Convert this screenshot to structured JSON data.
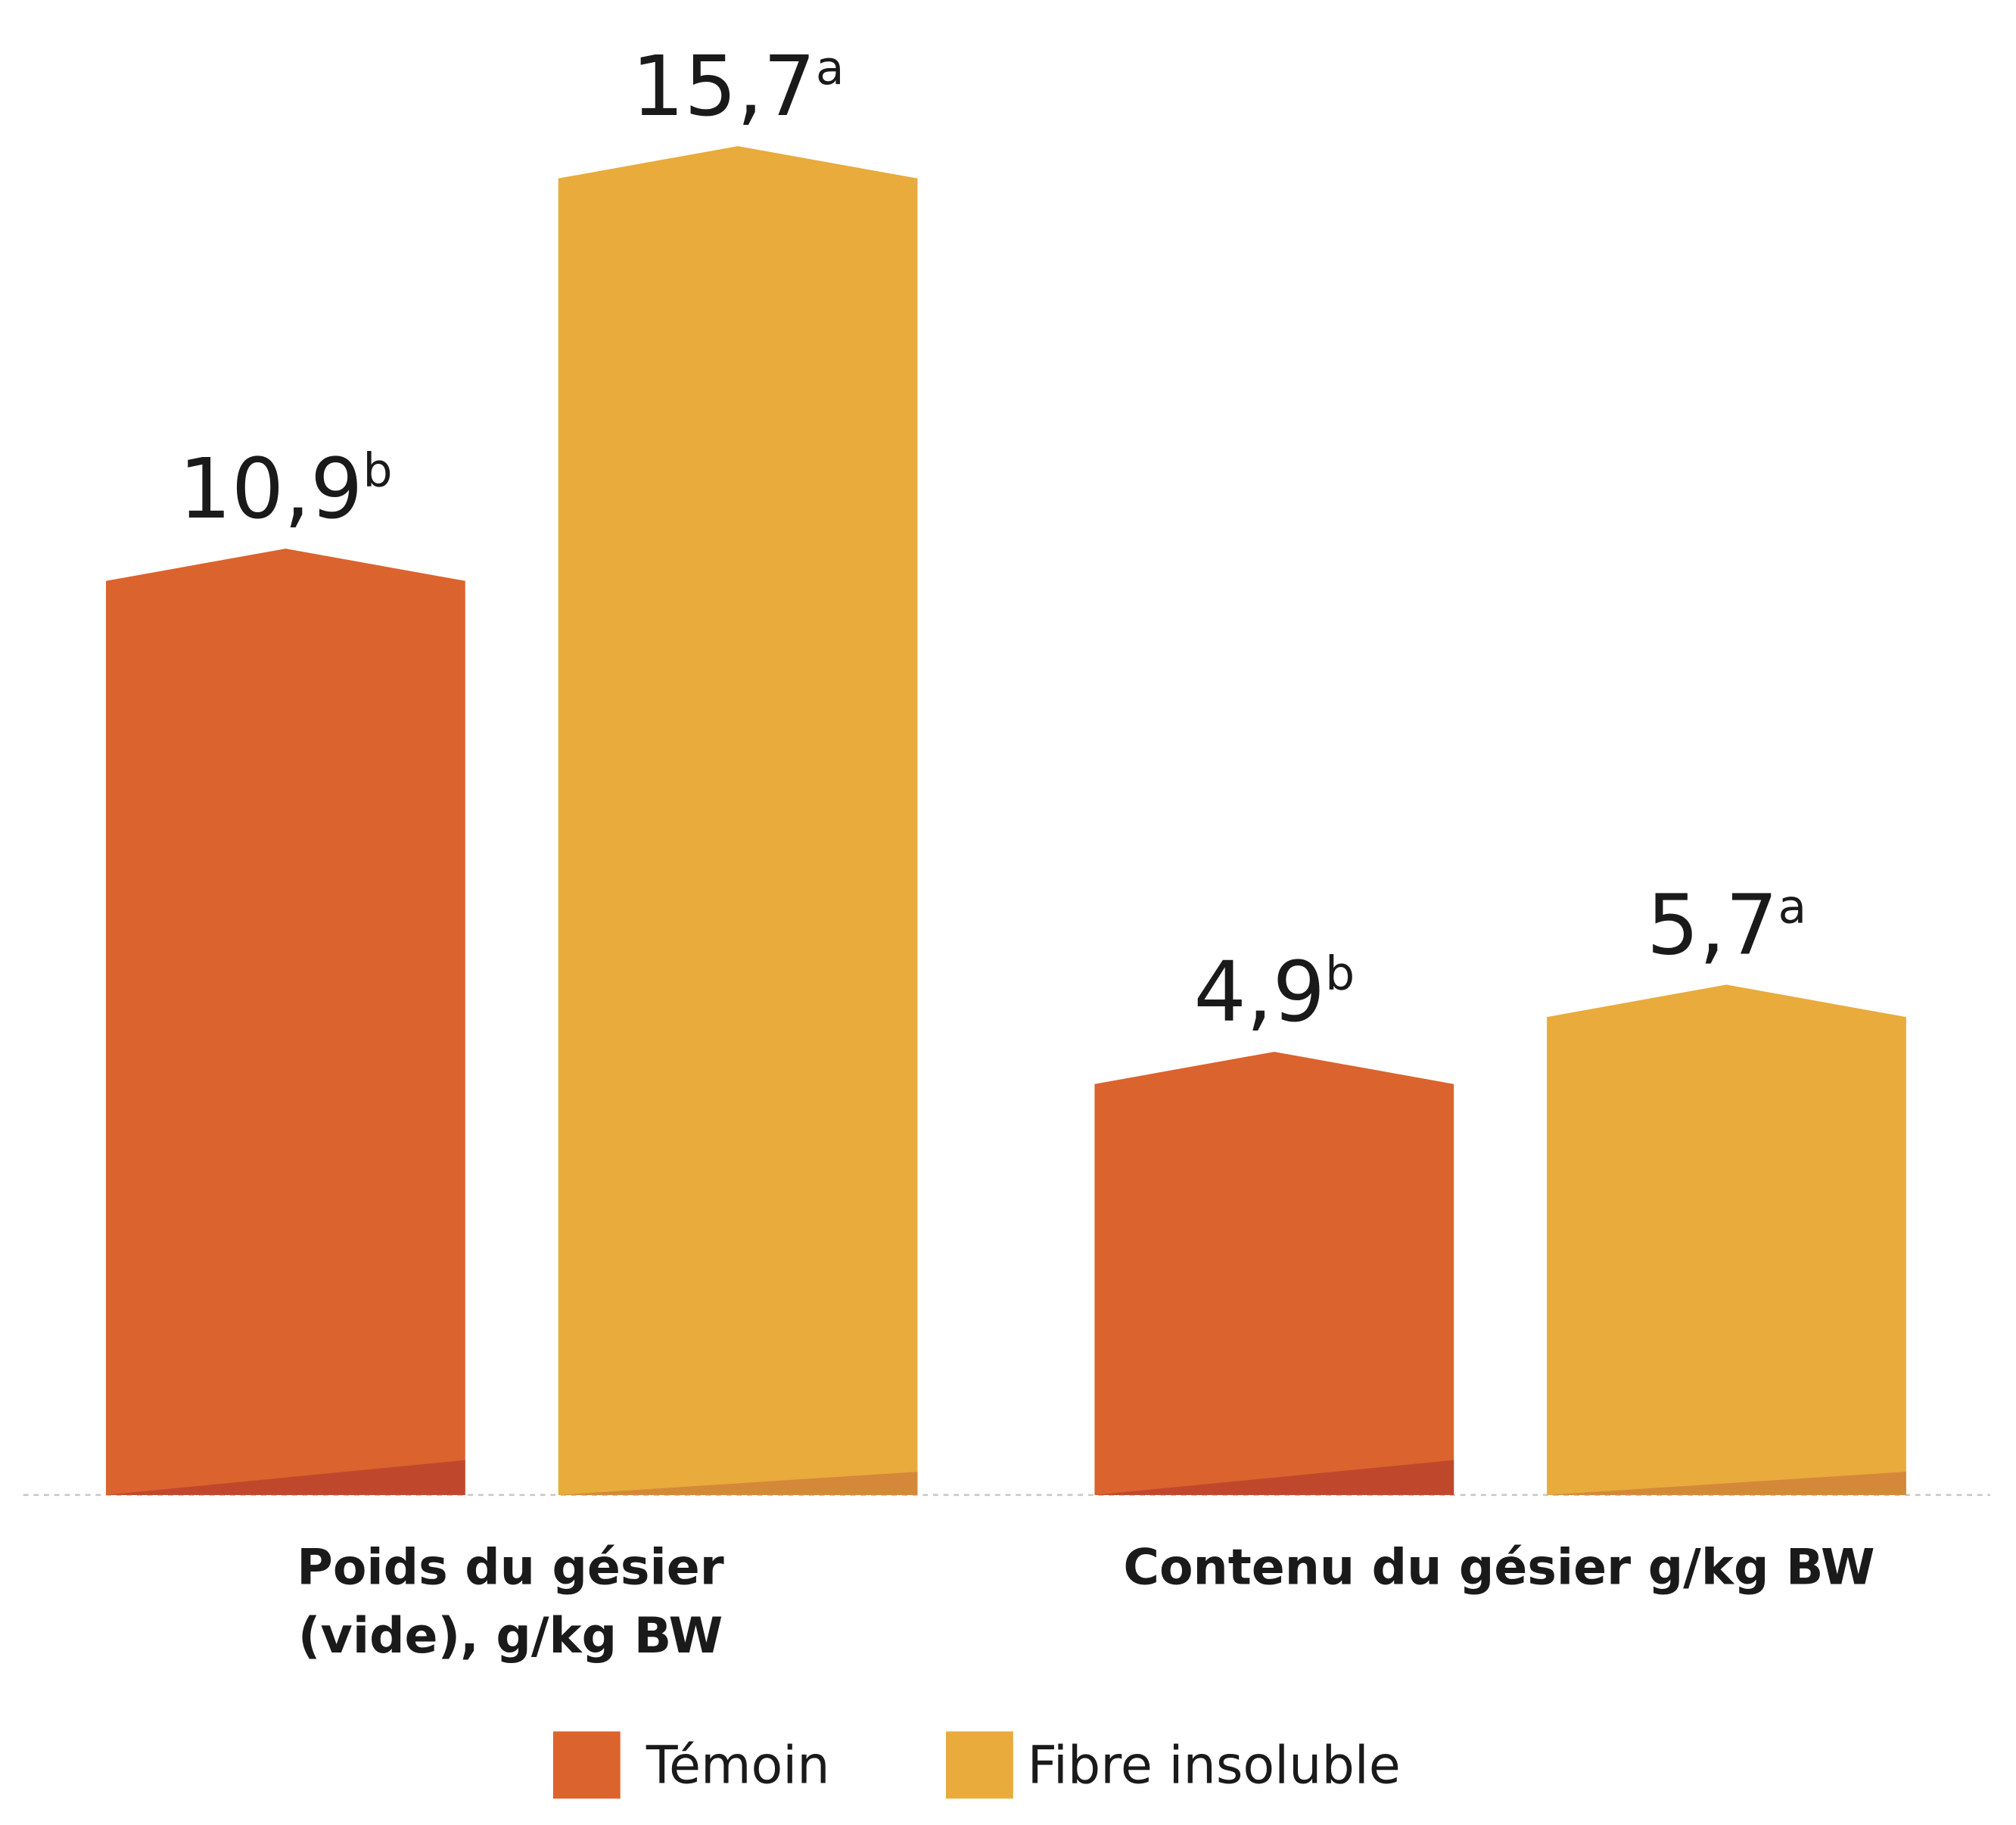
{
  "chart_data": {
    "type": "bar",
    "categories": [
      [
        "Poids du gésier",
        "(vide), g/kg BW"
      ],
      [
        "Contenu du gésier g/kg BW"
      ]
    ],
    "series": [
      {
        "name": "Témoin",
        "color": "#db632e",
        "values": [
          10.9,
          4.9
        ],
        "value_labels": [
          "10,9",
          "4,9"
        ],
        "significance": [
          "b",
          "b"
        ]
      },
      {
        "name": "Fibre insoluble",
        "color": "#e8ab3c",
        "values": [
          15.7,
          5.7
        ],
        "value_labels": [
          "15,7",
          "5,7"
        ],
        "significance": [
          "a",
          "a"
        ]
      }
    ]
  }
}
